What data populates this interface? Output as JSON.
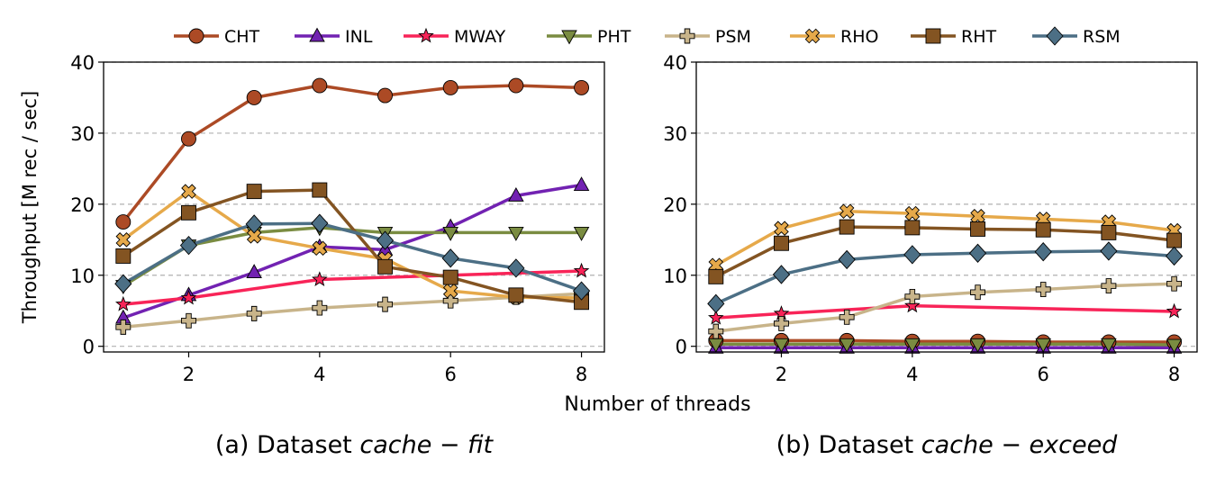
{
  "figure": {
    "ylabel": "Throughput [M rec / sec]",
    "xlabel": "Number of threads",
    "colors": {
      "CHT": "#ac4a25",
      "INL": "#7222b2",
      "MWAY": "#f82458",
      "PHT": "#7a8c41",
      "PSM": "#c8b48a",
      "RHO": "#e6a94a",
      "RHT": "#835422",
      "RSM": "#4c6f85"
    }
  },
  "legend": [
    {
      "name": "CHT",
      "marker": "circle"
    },
    {
      "name": "INL",
      "marker": "triangle-up"
    },
    {
      "name": "MWAY",
      "marker": "star"
    },
    {
      "name": "PHT",
      "marker": "triangle-down"
    },
    {
      "name": "PSM",
      "marker": "plus"
    },
    {
      "name": "RHO",
      "marker": "x"
    },
    {
      "name": "RHT",
      "marker": "square"
    },
    {
      "name": "RSM",
      "marker": "diamond"
    }
  ],
  "chart_data": [
    {
      "type": "line",
      "caption_prefix": "(a) Dataset ",
      "caption_italic": "cache − fit",
      "x": [
        1,
        2,
        3,
        4,
        5,
        6,
        7,
        8
      ],
      "xticks": [
        2,
        4,
        6,
        8
      ],
      "yticks": [
        0,
        10,
        20,
        30,
        40
      ],
      "xlim": [
        0.7,
        8.35
      ],
      "ylim": [
        -0.8,
        40
      ],
      "grid": "horizontal dashed",
      "series": [
        {
          "name": "CHT",
          "values": [
            17.5,
            29.2,
            35.0,
            36.7,
            35.3,
            36.4,
            36.7,
            36.4
          ]
        },
        {
          "name": "INL",
          "values": [
            4.0,
            7.2,
            10.4,
            14.0,
            13.6,
            16.8,
            21.2,
            22.7
          ]
        },
        {
          "name": "MWAY",
          "values": [
            5.9,
            6.8,
            null,
            9.4,
            null,
            null,
            null,
            10.6
          ]
        },
        {
          "name": "PHT",
          "values": [
            8.5,
            14.2,
            16.0,
            16.7,
            16.0,
            16.0,
            16.0,
            16.0
          ]
        },
        {
          "name": "PSM",
          "values": [
            2.7,
            3.6,
            4.6,
            5.4,
            5.9,
            6.4,
            6.9,
            7.4
          ]
        },
        {
          "name": "RHO",
          "values": [
            15.0,
            21.8,
            15.5,
            13.8,
            12.3,
            7.8,
            6.9,
            6.8
          ]
        },
        {
          "name": "RHT",
          "values": [
            12.7,
            18.8,
            21.8,
            22.0,
            11.2,
            9.7,
            7.2,
            6.2
          ]
        },
        {
          "name": "RSM",
          "values": [
            8.8,
            14.2,
            17.2,
            17.3,
            14.9,
            12.4,
            11.0,
            7.8
          ]
        }
      ]
    },
    {
      "type": "line",
      "caption_prefix": "(b) Dataset ",
      "caption_italic": "cache − exceed",
      "x": [
        1,
        2,
        3,
        4,
        5,
        6,
        7,
        8
      ],
      "xticks": [
        2,
        4,
        6,
        8
      ],
      "yticks": [
        0,
        10,
        20,
        30,
        40
      ],
      "xlim": [
        0.7,
        8.35
      ],
      "ylim": [
        -0.8,
        40
      ],
      "grid": "horizontal dashed",
      "series": [
        {
          "name": "CHT",
          "values": [
            0.8,
            0.8,
            0.8,
            0.7,
            0.7,
            0.6,
            0.6,
            0.6
          ]
        },
        {
          "name": "INL",
          "values": [
            -0.2,
            -0.2,
            -0.2,
            -0.2,
            -0.2,
            -0.2,
            -0.2,
            -0.2
          ]
        },
        {
          "name": "MWAY",
          "values": [
            4.0,
            4.6,
            null,
            5.7,
            null,
            null,
            null,
            4.9
          ]
        },
        {
          "name": "PHT",
          "values": [
            0.3,
            0.3,
            0.3,
            0.3,
            0.3,
            0.3,
            0.3,
            0.2
          ]
        },
        {
          "name": "PSM",
          "values": [
            2.1,
            3.2,
            4.1,
            7.0,
            7.6,
            8.0,
            8.5,
            8.8
          ]
        },
        {
          "name": "RHO",
          "values": [
            11.4,
            16.6,
            19.0,
            18.7,
            18.3,
            17.9,
            17.5,
            16.3
          ]
        },
        {
          "name": "RHT",
          "values": [
            9.8,
            14.5,
            16.8,
            16.7,
            16.5,
            16.4,
            16.0,
            14.9
          ]
        },
        {
          "name": "RSM",
          "values": [
            6.0,
            10.1,
            12.2,
            12.9,
            13.1,
            13.3,
            13.4,
            12.7
          ]
        }
      ]
    }
  ]
}
